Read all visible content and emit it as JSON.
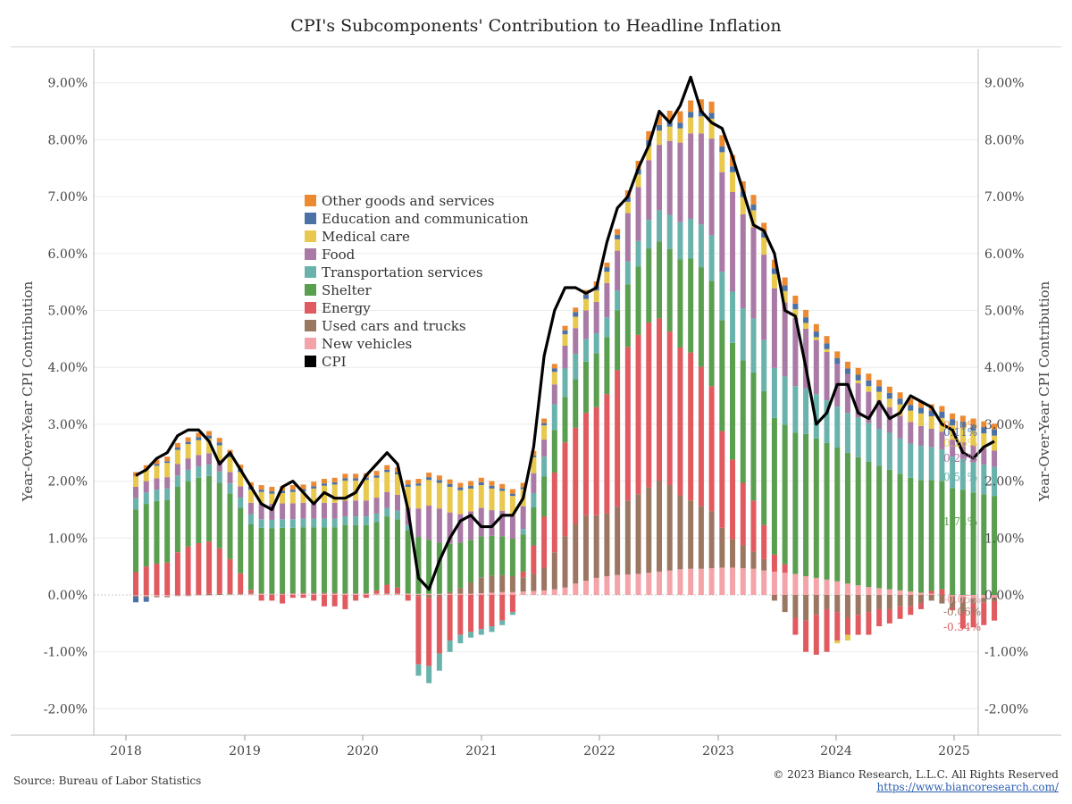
{
  "page": {
    "title": "CPI's Subcomponents' Contribution to Headline Inflation",
    "source": "Source: Bureau of Labor Statistics",
    "copyright": "© 2023 Bianco Research, L.L.C. All Rights Reserved",
    "url": "https://www.biancoresearch.com/"
  },
  "chart_data": {
    "type": "bar",
    "stacked": true,
    "title": "CPI's Subcomponents' Contribution to Headline Inflation",
    "ylabel": "Year-Over-Year CPI Contribution",
    "ylim": [
      -2.3,
      9.6
    ],
    "y_ticks": [
      9,
      8,
      7,
      6,
      5,
      4,
      3,
      2,
      1,
      0,
      -1,
      -2
    ],
    "y_tick_labels": [
      "9.00%",
      "8.00%",
      "7.00%",
      "6.00%",
      "5.00%",
      "4.00%",
      "3.00%",
      "2.00%",
      "1.00%",
      "0.00%",
      "-1.00%",
      "-2.00%"
    ],
    "x_ticks": [
      "2018",
      "2019",
      "2020",
      "2021",
      "2022",
      "2023",
      "2024",
      "2025"
    ],
    "frequency": "monthly",
    "start": "2018-01",
    "end": "2024-11",
    "legend_position": "upper-left-center",
    "series": [
      {
        "key": "new",
        "name": "New vehicles",
        "color": "#f4a3a8",
        "values": [
          -0.01,
          -0.02,
          -0.02,
          -0.02,
          -0.01,
          -0.01,
          -0.01,
          -0.01,
          0,
          0.01,
          0.01,
          0.02,
          0.02,
          0.01,
          0.01,
          0.02,
          0.02,
          0.02,
          0.02,
          0.02,
          0.02,
          0.02,
          0.02,
          0.02,
          0.02,
          0.02,
          0.02,
          0.02,
          0.02,
          0.02,
          0.02,
          0.02,
          0.02,
          0.03,
          0.04,
          0.05,
          0.05,
          0.06,
          0.07,
          0.08,
          0.1,
          0.13,
          0.2,
          0.25,
          0.3,
          0.33,
          0.35,
          0.36,
          0.37,
          0.39,
          0.41,
          0.43,
          0.45,
          0.46,
          0.46,
          0.47,
          0.48,
          0.48,
          0.47,
          0.46,
          0.43,
          0.41,
          0.39,
          0.37,
          0.33,
          0.3,
          0.27,
          0.24,
          0.2,
          0.17,
          0.14,
          0.12,
          0.1,
          0.08,
          0.06,
          0.04,
          0.02,
          0,
          -0.02,
          -0.04,
          -0.05,
          -0.05,
          -0.05
        ]
      },
      {
        "key": "used",
        "name": "Used cars and trucks",
        "color": "#9b7762",
        "values": [
          -0.02,
          -0.02,
          -0.02,
          -0.02,
          -0.01,
          -0.01,
          0.01,
          0.02,
          0.02,
          0.02,
          0.02,
          0.02,
          0.01,
          0.01,
          0.02,
          0.01,
          0.02,
          0.02,
          0.02,
          0.02,
          0.01,
          0.01,
          0.01,
          0.01,
          0.01,
          0.01,
          0.01,
          -0.02,
          -0.05,
          -0.03,
          0.03,
          0.1,
          0.2,
          0.28,
          0.3,
          0.3,
          0.28,
          0.25,
          0.3,
          0.4,
          0.65,
          0.9,
          1.04,
          1.15,
          1.1,
          1.1,
          1.2,
          1.3,
          1.4,
          1.5,
          1.6,
          1.5,
          1.3,
          1.2,
          1.1,
          1,
          0.7,
          0.5,
          0.4,
          0.3,
          0.2,
          -0.1,
          -0.3,
          -0.4,
          -0.45,
          -0.35,
          -0.25,
          -0.3,
          -0.4,
          -0.35,
          -0.3,
          -0.25,
          -0.25,
          -0.2,
          -0.2,
          -0.15,
          -0.1,
          -0.15,
          -0.2,
          -0.25,
          -0.1,
          -0.08,
          -0.06
        ]
      },
      {
        "key": "energy",
        "name": "Energy",
        "color": "#e05a5f",
        "values": [
          0.4,
          0.5,
          0.55,
          0.57,
          0.75,
          0.85,
          0.9,
          0.92,
          0.8,
          0.6,
          0.35,
          0.05,
          -0.1,
          -0.1,
          -0.15,
          -0.05,
          -0.05,
          -0.1,
          -0.2,
          -0.2,
          -0.25,
          -0.1,
          -0.05,
          0.05,
          0.15,
          0.1,
          -0.1,
          -1.2,
          -1.2,
          -1,
          -0.8,
          -0.7,
          -0.65,
          -0.6,
          -0.55,
          -0.45,
          -0.3,
          0.1,
          0.5,
          0.9,
          1.4,
          1.65,
          1.7,
          1.8,
          1.9,
          2.1,
          2.4,
          2.7,
          2.8,
          2.9,
          2.85,
          2.7,
          2.6,
          2.6,
          2.45,
          2.2,
          1.7,
          1.4,
          1.1,
          0.9,
          0.6,
          0.3,
          0.15,
          -0.3,
          -0.55,
          -0.7,
          -0.75,
          -0.5,
          -0.3,
          -0.35,
          -0.4,
          -0.3,
          -0.25,
          -0.22,
          -0.15,
          -0.1,
          0.05,
          0.1,
          -0.05,
          -0.3,
          -0.42,
          -0.4,
          -0.34
        ]
      },
      {
        "key": "shelter",
        "name": "Shelter",
        "color": "#5a9e4f",
        "values": [
          1.1,
          1.1,
          1.1,
          1.1,
          1.15,
          1.15,
          1.15,
          1.15,
          1.15,
          1.15,
          1.15,
          1.15,
          1.15,
          1.15,
          1.15,
          1.15,
          1.15,
          1.15,
          1.15,
          1.15,
          1.2,
          1.2,
          1.2,
          1.2,
          1.2,
          1.2,
          1.1,
          1.0,
          0.95,
          0.9,
          0.85,
          0.8,
          0.75,
          0.72,
          0.7,
          0.68,
          0.66,
          0.65,
          0.67,
          0.7,
          0.75,
          0.8,
          0.85,
          0.9,
          0.95,
          1.0,
          1.05,
          1.1,
          1.2,
          1.3,
          1.35,
          1.45,
          1.55,
          1.65,
          1.75,
          1.85,
          1.95,
          2.05,
          2.15,
          2.25,
          2.35,
          2.4,
          2.45,
          2.48,
          2.5,
          2.45,
          2.4,
          2.35,
          2.3,
          2.25,
          2.2,
          2.15,
          2.1,
          2.05,
          2.0,
          1.98,
          1.95,
          1.9,
          1.88,
          1.85,
          1.8,
          1.77,
          1.74
        ]
      },
      {
        "key": "transport",
        "name": "Transportation services",
        "color": "#6ab3ad",
        "values": [
          0.2,
          0.2,
          0.2,
          0.2,
          0.2,
          0.2,
          0.2,
          0.2,
          0.2,
          0.18,
          0.18,
          0.18,
          0.15,
          0.15,
          0.15,
          0.15,
          0.15,
          0.15,
          0.15,
          0.15,
          0.15,
          0.15,
          0.15,
          0.15,
          0.15,
          0.15,
          0.1,
          -0.2,
          -0.3,
          -0.3,
          -0.2,
          -0.15,
          -0.1,
          -0.1,
          -0.1,
          -0.08,
          -0.05,
          0.1,
          0.25,
          0.35,
          0.45,
          0.5,
          0.45,
          0.4,
          0.35,
          0.35,
          0.35,
          0.4,
          0.45,
          0.5,
          0.55,
          0.6,
          0.65,
          0.7,
          0.75,
          0.8,
          0.85,
          0.9,
          0.92,
          0.95,
          0.9,
          0.88,
          0.85,
          0.82,
          0.8,
          0.78,
          0.75,
          0.72,
          0.7,
          0.7,
          0.68,
          0.65,
          0.65,
          0.62,
          0.6,
          0.6,
          0.58,
          0.56,
          0.55,
          0.54,
          0.53,
          0.52,
          0.51
        ]
      },
      {
        "key": "food",
        "name": "Food",
        "color": "#a97aa5",
        "values": [
          0.2,
          0.2,
          0.2,
          0.2,
          0.2,
          0.2,
          0.2,
          0.2,
          0.2,
          0.2,
          0.2,
          0.2,
          0.28,
          0.28,
          0.28,
          0.28,
          0.28,
          0.28,
          0.28,
          0.28,
          0.28,
          0.28,
          0.28,
          0.28,
          0.28,
          0.28,
          0.3,
          0.5,
          0.6,
          0.6,
          0.55,
          0.5,
          0.5,
          0.5,
          0.45,
          0.45,
          0.4,
          0.4,
          0.35,
          0.3,
          0.35,
          0.4,
          0.45,
          0.5,
          0.55,
          0.6,
          0.7,
          0.85,
          0.95,
          1.05,
          1.15,
          1.3,
          1.4,
          1.5,
          1.6,
          1.7,
          1.75,
          1.75,
          1.65,
          1.6,
          1.5,
          1.4,
          1.3,
          1.2,
          1.05,
          0.95,
          0.85,
          0.75,
          0.68,
          0.6,
          0.55,
          0.5,
          0.45,
          0.4,
          0.38,
          0.35,
          0.32,
          0.31,
          0.3,
          0.3,
          0.3,
          0.29,
          0.29
        ]
      },
      {
        "key": "medical",
        "name": "Medical care",
        "color": "#e8c94e",
        "values": [
          0.18,
          0.2,
          0.22,
          0.25,
          0.25,
          0.25,
          0.26,
          0.26,
          0.26,
          0.26,
          0.25,
          0.23,
          0.2,
          0.18,
          0.18,
          0.2,
          0.2,
          0.25,
          0.3,
          0.32,
          0.35,
          0.35,
          0.36,
          0.35,
          0.35,
          0.36,
          0.37,
          0.4,
          0.45,
          0.45,
          0.45,
          0.42,
          0.4,
          0.4,
          0.38,
          0.35,
          0.35,
          0.3,
          0.28,
          0.25,
          0.22,
          0.2,
          0.2,
          0.2,
          0.2,
          0.2,
          0.2,
          0.2,
          0.22,
          0.25,
          0.25,
          0.25,
          0.25,
          0.28,
          0.3,
          0.35,
          0.35,
          0.35,
          0.3,
          0.3,
          0.3,
          0.25,
          0.2,
          0.15,
          0.1,
          0.05,
          0.05,
          -0.05,
          -0.1,
          0.05,
          0.1,
          0.15,
          0.15,
          0.2,
          0.2,
          0.22,
          0.22,
          0.24,
          0.25,
          0.25,
          0.26,
          0.26,
          0.26
        ]
      },
      {
        "key": "educ",
        "name": "Education and communication",
        "color": "#4b72a6",
        "values": [
          -0.1,
          -0.08,
          0.03,
          0.03,
          0.04,
          0.04,
          0.05,
          0.05,
          0.05,
          0.05,
          0.05,
          0.05,
          0.04,
          0.04,
          0.04,
          0.04,
          0.04,
          0.04,
          0.04,
          0.04,
          0.04,
          0.04,
          0.04,
          0.04,
          0.04,
          0.04,
          0.04,
          0.04,
          0.05,
          0.05,
          0.05,
          0.05,
          0.05,
          0.05,
          0.05,
          0.04,
          0.04,
          0.03,
          0.03,
          0.04,
          0.06,
          0.07,
          0.08,
          0.08,
          0.08,
          0.08,
          0.08,
          0.08,
          0.1,
          0.1,
          0.1,
          0.1,
          0.1,
          0.1,
          0.1,
          0.1,
          0.1,
          0.1,
          0.1,
          0.1,
          0.1,
          0.1,
          0.1,
          0.1,
          0.1,
          0.1,
          0.1,
          0.1,
          0.1,
          0.1,
          0.1,
          0.1,
          0.1,
          0.1,
          0.1,
          0.1,
          0.1,
          0.11,
          0.11,
          0.11,
          0.11,
          0.11,
          0.11
        ]
      },
      {
        "key": "other",
        "name": "Other goods and services",
        "color": "#ec8a32",
        "values": [
          0.08,
          0.08,
          0.08,
          0.08,
          0.08,
          0.08,
          0.08,
          0.08,
          0.08,
          0.08,
          0.08,
          0.08,
          0.08,
          0.08,
          0.08,
          0.08,
          0.08,
          0.08,
          0.08,
          0.08,
          0.08,
          0.08,
          0.08,
          0.08,
          0.08,
          0.08,
          0.08,
          0.08,
          0.08,
          0.08,
          0.08,
          0.08,
          0.08,
          0.08,
          0.08,
          0.08,
          0.08,
          0.08,
          0.08,
          0.08,
          0.08,
          0.08,
          0.08,
          0.08,
          0.08,
          0.08,
          0.1,
          0.12,
          0.14,
          0.16,
          0.18,
          0.18,
          0.2,
          0.2,
          0.2,
          0.2,
          0.2,
          0.2,
          0.18,
          0.17,
          0.16,
          0.15,
          0.14,
          0.14,
          0.13,
          0.13,
          0.13,
          0.12,
          0.12,
          0.12,
          0.12,
          0.11,
          0.11,
          0.11,
          0.11,
          0.11,
          0.11,
          0.1,
          0.1,
          0.1,
          0.1,
          0.1,
          0.1
        ]
      },
      {
        "key": "cpi",
        "name": "CPI",
        "color": "#000000",
        "type": "line",
        "values": [
          2.1,
          2.2,
          2.4,
          2.5,
          2.8,
          2.9,
          2.9,
          2.7,
          2.3,
          2.5,
          2.2,
          1.9,
          1.6,
          1.5,
          1.9,
          2.0,
          1.8,
          1.6,
          1.8,
          1.7,
          1.7,
          1.8,
          2.1,
          2.3,
          2.5,
          2.3,
          1.5,
          0.3,
          0.1,
          0.6,
          1.0,
          1.3,
          1.4,
          1.2,
          1.2,
          1.4,
          1.4,
          1.7,
          2.6,
          4.2,
          5.0,
          5.4,
          5.4,
          5.3,
          5.4,
          6.2,
          6.8,
          7.0,
          7.5,
          7.9,
          8.5,
          8.3,
          8.6,
          9.1,
          8.5,
          8.3,
          8.2,
          7.7,
          7.1,
          6.5,
          6.4,
          6.0,
          5.0,
          4.9,
          4.0,
          3.0,
          3.2,
          3.7,
          3.7,
          3.2,
          3.1,
          3.4,
          3.1,
          3.2,
          3.5,
          3.4,
          3.3,
          3.0,
          2.9,
          2.5,
          2.4,
          2.6,
          2.7
        ]
      }
    ],
    "end_labels": [
      {
        "series": "other",
        "text": "0.10%"
      },
      {
        "series": "educ",
        "text": "0.11%"
      },
      {
        "series": "medical",
        "text": "0.26%"
      },
      {
        "series": "food",
        "text": "0.29%"
      },
      {
        "series": "transport",
        "text": "0.51%"
      },
      {
        "series": "shelter",
        "text": "1.74%"
      },
      {
        "series": "new",
        "text": "-0.05%"
      },
      {
        "series": "used",
        "text": "-0.06%"
      },
      {
        "series": "energy",
        "text": "-0.34%"
      }
    ]
  }
}
